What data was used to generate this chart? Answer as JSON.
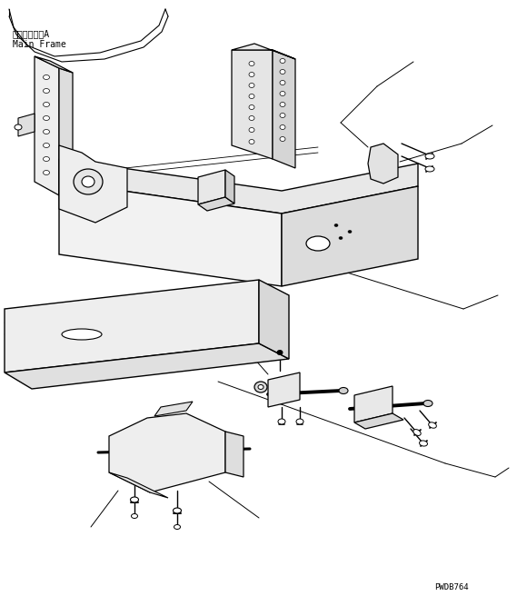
{
  "bg_color": "#ffffff",
  "line_color": "#000000",
  "fig_width": 5.69,
  "fig_height": 6.56,
  "dpi": 100,
  "label_top_left_line1": "メインフレーA",
  "label_top_left_line2": "Main Frame",
  "label_bottom_right": "PWDB764"
}
